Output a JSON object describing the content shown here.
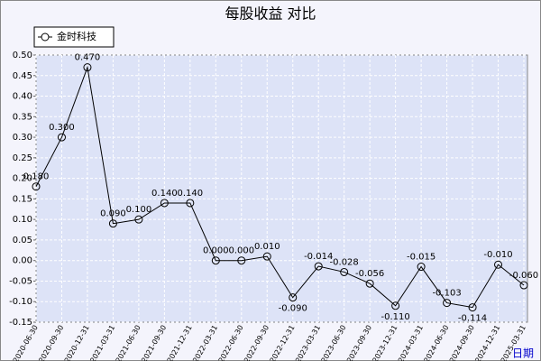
{
  "chart_data": {
    "type": "line",
    "title": "每股收益 对比",
    "x_label": "日期",
    "categories": [
      "2020-06-30",
      "2020-09-30",
      "2020-12-31",
      "2021-03-31",
      "2021-06-30",
      "2021-09-30",
      "2021-12-31",
      "2022-03-31",
      "2022-06-30",
      "2022-09-30",
      "2022-12-31",
      "2023-03-31",
      "2023-06-30",
      "2023-09-30",
      "2023-12-31",
      "2024-03-31",
      "2024-06-30",
      "2024-09-30",
      "2024-12-31",
      "2025-03-31"
    ],
    "series": [
      {
        "name": "金时科技",
        "color": "#000000",
        "values": [
          0.18,
          0.3,
          0.47,
          0.09,
          0.1,
          0.14,
          0.14,
          0,
          0,
          0.01,
          -0.09,
          -0.014,
          -0.028,
          -0.056,
          -0.11,
          -0.015,
          -0.103,
          -0.114,
          -0.01,
          -0.06
        ],
        "value_labels": [
          "0.180",
          "0.300",
          "0.470",
          "0.090",
          "0.100",
          "0.140",
          "0.140",
          "0.000",
          "0.000",
          "0.010",
          "-0.090",
          "-0.014",
          "-0.028",
          "-0.056",
          "-0.110",
          "-0.015",
          "-0.103",
          "-0.114",
          "-0.010",
          "-0.060"
        ]
      }
    ],
    "ylim": [
      -0.15,
      0.5
    ],
    "yticks": [
      {
        "value": -0.15,
        "label": "-0.15"
      },
      {
        "value": -0.1,
        "label": "-0.10"
      },
      {
        "value": -0.05,
        "label": "-0.05"
      },
      {
        "value": 0,
        "label": "0.00"
      },
      {
        "value": 0.05,
        "label": "0.05"
      },
      {
        "value": 0.1,
        "label": "0.10"
      },
      {
        "value": 0.15,
        "label": "0.15"
      },
      {
        "value": 0.2,
        "label": "0.20"
      },
      {
        "value": 0.25,
        "label": "0.25"
      },
      {
        "value": 0.3,
        "label": "0.30"
      },
      {
        "value": 0.35,
        "label": "0.35"
      },
      {
        "value": 0.4,
        "label": "0.40"
      },
      {
        "value": 0.45,
        "label": "0.45"
      },
      {
        "value": 0.5,
        "label": "0.50"
      }
    ],
    "grid": true,
    "legend": "top-left"
  }
}
